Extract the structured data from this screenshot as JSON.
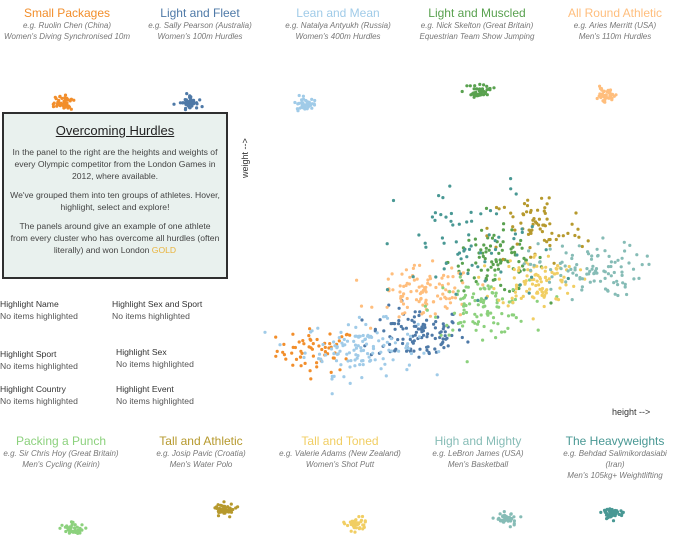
{
  "intro": {
    "title": "Overcoming Hurdles",
    "para1": "In the panel to the right are the heights and weights of every Olympic competitor from the London Games in 2012, where available.",
    "para2": "We've grouped them into ten groups of athletes. Hover, highlight, select and explore!",
    "para3": "The panels around give an example of one athlete from every cluster who has overcome all hurdles (often literally) and won London",
    "gold_word": "GOLD"
  },
  "highlights": [
    {
      "label": "Highlight Name",
      "value": "No items highlighted"
    },
    {
      "label": "Highlight Sex and Sport",
      "value": "No items highlighted"
    },
    {
      "label": "Highlight Sport",
      "value": "No items highlighted"
    },
    {
      "label": "Highlight Sex",
      "value": "No items highlighted"
    },
    {
      "label": "Highlight Country",
      "value": "No items highlighted"
    },
    {
      "label": "Highlight Event",
      "value": "No items highlighted"
    }
  ],
  "clusters": [
    {
      "name": "Small Packages",
      "example": "e.g. Ruolin Chen (China)",
      "event": "Women's Diving Synchronised 10m",
      "color": "#f28e2b"
    },
    {
      "name": "Light and Fleet",
      "example": "e.g. Sally Pearson (Australia)",
      "event": "Women's 100m Hurdles",
      "color": "#4e79a7"
    },
    {
      "name": "Lean and Mean",
      "example": "e.g. Natalya Antyukh (Russia)",
      "event": "Women's 400m Hurdles",
      "color": "#a0cbe8"
    },
    {
      "name": "Light and Muscled",
      "example": "e.g. Nick Skelton (Great Britain)",
      "event": "Equestrian Team  Show Jumping",
      "color": "#59a14f"
    },
    {
      "name": "All Round Athletic",
      "example": "e.g. Aries Merritt  (USA)",
      "event": "Men's 110m Hurdles",
      "color": "#ffbe7d"
    },
    {
      "name": "Packing a Punch",
      "example": "e.g. Sir Chris Hoy (Great Britain)",
      "event": "Men's Cycling (Keirin)",
      "color": "#8cd17d"
    },
    {
      "name": "Tall and Athletic",
      "example": "e.g. Josip Pavic (Croatia)",
      "event": "Men's Water Polo",
      "color": "#b6992d"
    },
    {
      "name": "Tall and Toned",
      "example": "e.g. Valerie Adams (New Zealand)",
      "event": "Women's Shot Putt",
      "color": "#f1ce63"
    },
    {
      "name": "High and Mighty",
      "example": "e.g. LeBron James (USA)",
      "event": "Men's Basketball",
      "color": "#86bcb6"
    },
    {
      "name": "The Heavyweights",
      "example": "e.g. Behdad Salimikordasiabi",
      "example2": "(Iran)",
      "event": "Men's 105kg+ Weightlifting",
      "color": "#499894"
    }
  ],
  "chart_data": {
    "type": "scatter",
    "title": "Overcoming Hurdles",
    "xlabel": "height -->",
    "ylabel": "weight -->",
    "grid": false,
    "series": [
      {
        "name": "Small Packages",
        "color": "#f28e2b",
        "center": [
          0.15,
          0.22
        ],
        "spread": [
          0.05,
          0.04
        ],
        "count": 60
      },
      {
        "name": "Light and Fleet",
        "color": "#4e79a7",
        "center": [
          0.4,
          0.28
        ],
        "spread": [
          0.06,
          0.05
        ],
        "count": 110
      },
      {
        "name": "Lean and Mean",
        "color": "#a0cbe8",
        "center": [
          0.26,
          0.23
        ],
        "spread": [
          0.07,
          0.05
        ],
        "count": 120
      },
      {
        "name": "Light and Muscled",
        "color": "#59a14f",
        "center": [
          0.6,
          0.55
        ],
        "spread": [
          0.06,
          0.06
        ],
        "count": 90
      },
      {
        "name": "All Round Athletic",
        "color": "#ffbe7d",
        "center": [
          0.42,
          0.43
        ],
        "spread": [
          0.06,
          0.05
        ],
        "count": 100
      },
      {
        "name": "Packing a Punch",
        "color": "#8cd17d",
        "center": [
          0.56,
          0.38
        ],
        "spread": [
          0.06,
          0.05
        ],
        "count": 100
      },
      {
        "name": "Tall and Athletic",
        "color": "#b6992d",
        "center": [
          0.7,
          0.67
        ],
        "spread": [
          0.06,
          0.07
        ],
        "count": 70
      },
      {
        "name": "Tall and Toned",
        "color": "#f1ce63",
        "center": [
          0.7,
          0.48
        ],
        "spread": [
          0.05,
          0.05
        ],
        "count": 100
      },
      {
        "name": "High and Mighty",
        "color": "#86bcb6",
        "center": [
          0.82,
          0.52
        ],
        "spread": [
          0.07,
          0.05
        ],
        "count": 100
      },
      {
        "name": "The Heavyweights",
        "color": "#499894",
        "center": [
          0.55,
          0.6
        ],
        "spread": [
          0.1,
          0.12
        ],
        "count": 70
      }
    ]
  }
}
